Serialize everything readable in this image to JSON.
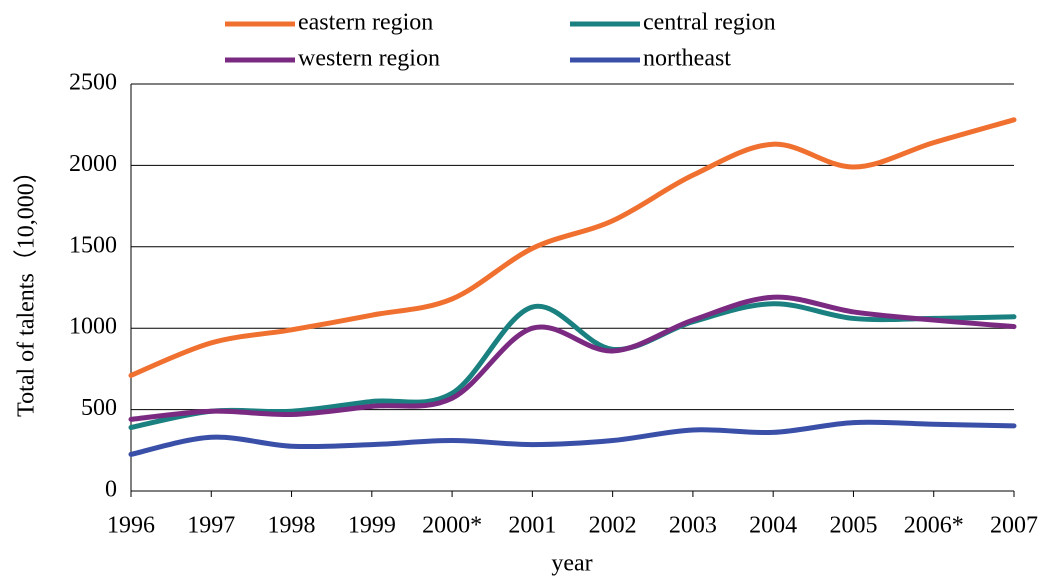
{
  "chart_data": {
    "type": "line",
    "x_label": "year",
    "y_label": "Total of talents（10,000）",
    "categories": [
      "1996",
      "1997",
      "1998",
      "1999",
      "2000*",
      "2001",
      "2002",
      "2003",
      "2004",
      "2005",
      "2006*",
      "2007"
    ],
    "series": [
      {
        "name": "eastern region",
        "color": "#f07030",
        "values": [
          710,
          910,
          990,
          1080,
          1180,
          1490,
          1660,
          1940,
          2130,
          1990,
          2140,
          2280
        ]
      },
      {
        "name": "central region",
        "color": "#1a8080",
        "values": [
          390,
          490,
          490,
          550,
          600,
          1130,
          870,
          1040,
          1150,
          1060,
          1060,
          1070
        ]
      },
      {
        "name": "western region",
        "color": "#7a2a80",
        "values": [
          440,
          490,
          470,
          520,
          570,
          1000,
          860,
          1050,
          1190,
          1100,
          1050,
          1010
        ]
      },
      {
        "name": "northeast",
        "color": "#3a50a8",
        "values": [
          225,
          330,
          275,
          285,
          310,
          285,
          310,
          375,
          360,
          420,
          410,
          400
        ]
      }
    ],
    "ylim": [
      0,
      2500
    ],
    "yticks": [
      0,
      500,
      1000,
      1500,
      2000,
      2500
    ],
    "grid": true
  }
}
